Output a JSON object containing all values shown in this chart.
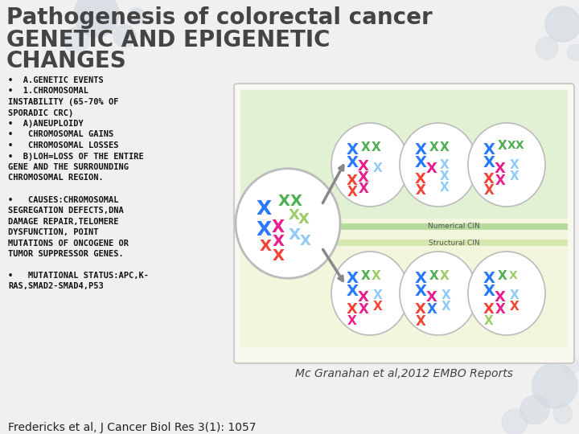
{
  "background_color": "#f0f0f0",
  "title_line1": "Pathogenesis of colorectal cancer",
  "title_line2": "GENETIC AND EPIGENETIC",
  "title_line3": "CHANGES",
  "title_color": "#444444",
  "title_fontsize": 20,
  "subtitle_fontsize": 20,
  "body_color": "#111111",
  "body_fontsize": 7.5,
  "footer_text": "Fredericks et al, J Cancer Biol Res 3(1): 1057",
  "footer_fontsize": 10,
  "footer_color": "#222222",
  "image_caption": "Mc Granahan et al,2012 EMBO Reports",
  "caption_fontsize": 10,
  "caption_color": "#444444",
  "image_box_color": "#f8f8f0",
  "image_box_border": "#cccccc",
  "green_band_color": "#d4edc0",
  "struct_band_color": "#edf5d0",
  "drop_color": "#d0d8e0",
  "drop_alpha": 0.55
}
